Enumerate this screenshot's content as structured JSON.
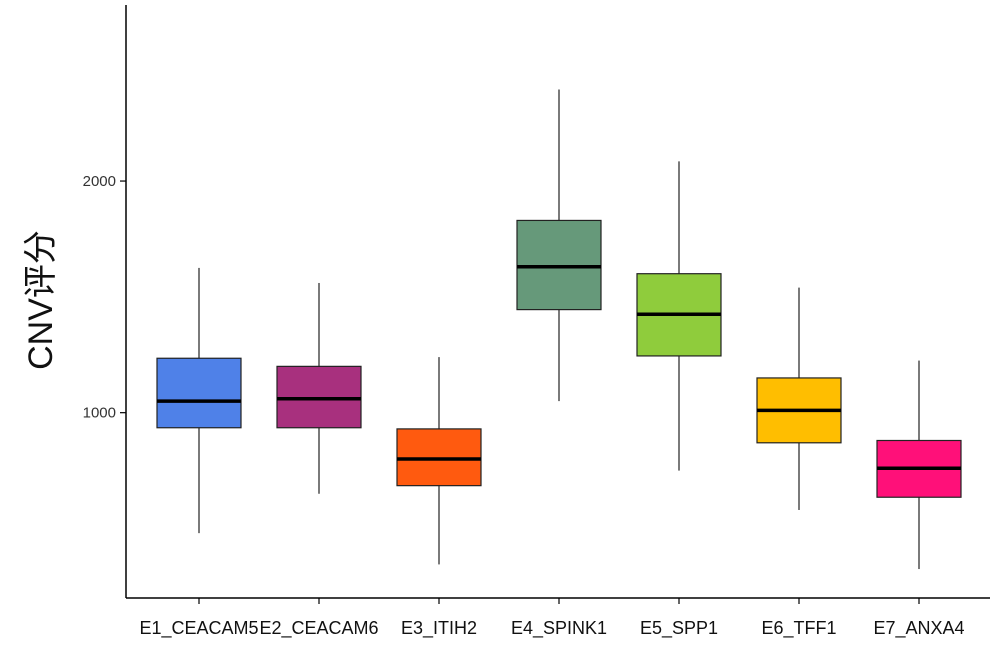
{
  "chart_data": {
    "type": "box",
    "title": "",
    "xlabel": "",
    "ylabel": "CNV评分",
    "ylim": [
      200,
      2760
    ],
    "yticks": [
      1000,
      2000
    ],
    "grid": false,
    "legend": "none",
    "categories": [
      "E1_CEACAM5",
      "E2_CEACAM6",
      "E3_ITIH2",
      "E4_SPINK1",
      "E5_SPP1",
      "E6_TFF1",
      "E7_ANXA4"
    ],
    "boxes": [
      {
        "name": "E1_CEACAM5",
        "min": 480,
        "q1": 935,
        "median": 1050,
        "q3": 1235,
        "max": 1625,
        "color": "#4F81E8"
      },
      {
        "name": "E2_CEACAM6",
        "min": 650,
        "q1": 935,
        "median": 1060,
        "q3": 1200,
        "max": 1560,
        "color": "#A8307E"
      },
      {
        "name": "E3_ITIH2",
        "min": 345,
        "q1": 685,
        "median": 800,
        "q3": 930,
        "max": 1240,
        "color": "#FF5A0F"
      },
      {
        "name": "E4_SPINK1",
        "min": 1050,
        "q1": 1445,
        "median": 1630,
        "q3": 1830,
        "max": 2395,
        "color": "#66997A"
      },
      {
        "name": "E5_SPP1",
        "min": 750,
        "q1": 1245,
        "median": 1425,
        "q3": 1600,
        "max": 2085,
        "color": "#8FCC3C"
      },
      {
        "name": "E6_TFF1",
        "min": 580,
        "q1": 870,
        "median": 1010,
        "q3": 1150,
        "max": 1540,
        "color": "#FFBE00"
      },
      {
        "name": "E7_ANXA4",
        "min": 325,
        "q1": 635,
        "median": 760,
        "q3": 880,
        "max": 1225,
        "color": "#FF1079"
      }
    ]
  }
}
